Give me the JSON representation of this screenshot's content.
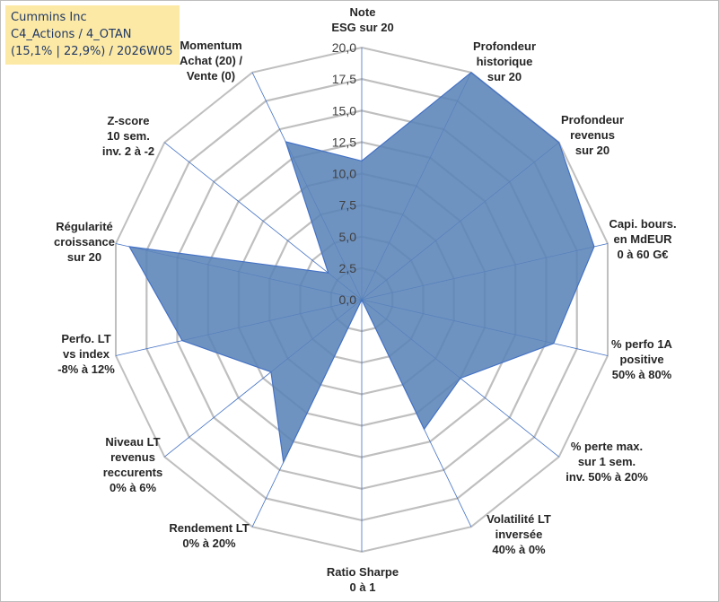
{
  "header": {
    "line1": "Cummins Inc",
    "line2": "C4_Actions / 4_OTAN",
    "line3": "(15,1% | 22,9%) / 2026W05"
  },
  "chart_data": {
    "type": "radar",
    "title": "Cummins Inc",
    "rmin": 0,
    "rmax": 20,
    "tick_labels": [
      "0,0",
      "2,5",
      "5,0",
      "7,5",
      "10,0",
      "12,5",
      "15,0",
      "17,5",
      "20,0"
    ],
    "categories": [
      [
        "Note",
        "ESG sur 20"
      ],
      [
        "Profondeur",
        "historique",
        "sur 20"
      ],
      [
        "Profondeur",
        "revenus",
        "sur 20"
      ],
      [
        "Capi. bours.",
        "en MdEUR",
        "0 à 60 G€"
      ],
      [
        "% perfo 1A",
        "positive",
        "50% à 80%"
      ],
      [
        "% perte max.",
        "sur 1 sem.",
        "inv. 50% à 20%"
      ],
      [
        "Volatilité LT",
        "inversée",
        "40% à 0%"
      ],
      [
        "Ratio Sharpe",
        "0 à 1"
      ],
      [
        "Rendement LT",
        "0% à 20%"
      ],
      [
        "Niveau LT",
        "revenus",
        "reccurents",
        "0% à 6%"
      ],
      [
        "Perfo. LT",
        "vs index",
        "-8% à 12%"
      ],
      [
        "Régularité",
        "croissance",
        "sur 20"
      ],
      [
        "Z-score",
        "10 sem.",
        "inv. 2 à -2"
      ],
      [
        "Momentum",
        "Achat (20) /",
        "Vente (0)"
      ]
    ],
    "series": [
      {
        "name": "Cummins Inc",
        "values": [
          11.0,
          20.0,
          20.0,
          18.9,
          15.6,
          10.0,
          11.4,
          0.0,
          14.3,
          9.2,
          14.6,
          18.9,
          3.4,
          13.9
        ]
      }
    ],
    "colors": {
      "fill": "#5b84b8",
      "stroke": "#4472c4",
      "grid": "#bfbfbf",
      "spoke": "#4472c4"
    }
  }
}
